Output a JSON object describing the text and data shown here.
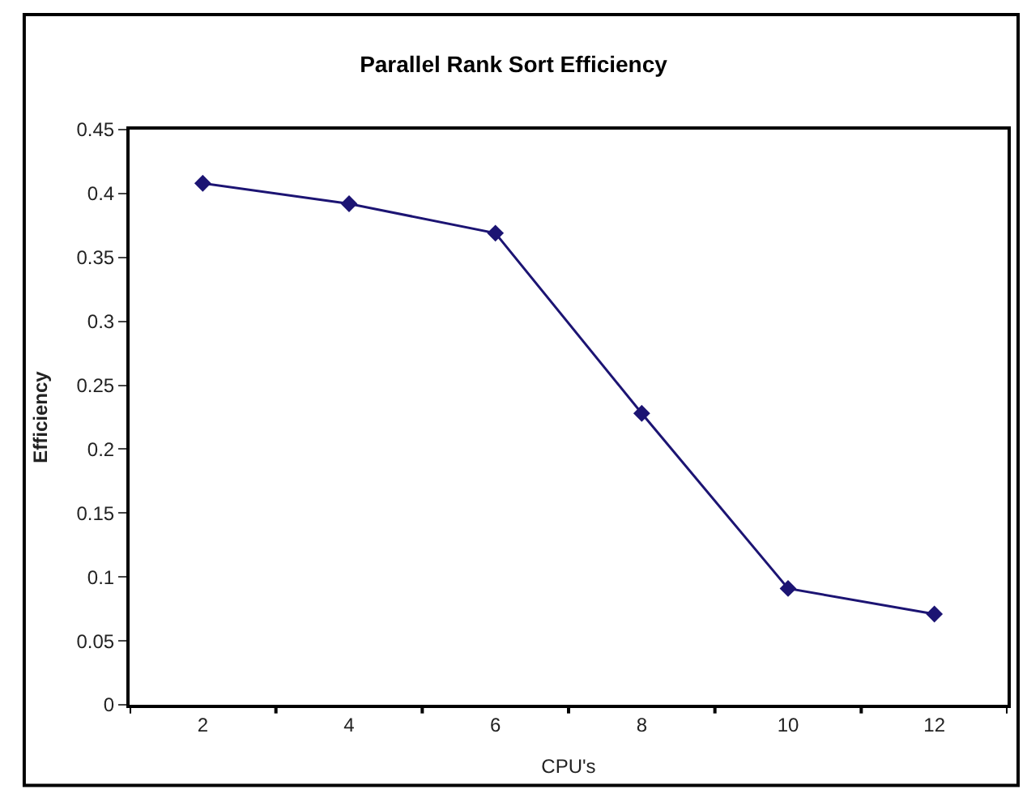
{
  "chart_data": {
    "type": "line",
    "title": "Parallel Rank Sort Efficiency",
    "xlabel": "CPU's",
    "ylabel": "Efficiency",
    "categories": [
      "2",
      "4",
      "6",
      "8",
      "10",
      "12"
    ],
    "series": [
      {
        "color": "#1c1473",
        "values": [
          0.408,
          0.392,
          0.369,
          0.228,
          0.091,
          0.071
        ]
      }
    ],
    "ylim": [
      0,
      0.45
    ],
    "yticks": [
      0,
      0.05,
      0.1,
      0.15,
      0.2,
      0.25,
      0.3,
      0.35,
      0.4,
      0.45
    ],
    "marker": "diamond",
    "line_style": "solid"
  }
}
